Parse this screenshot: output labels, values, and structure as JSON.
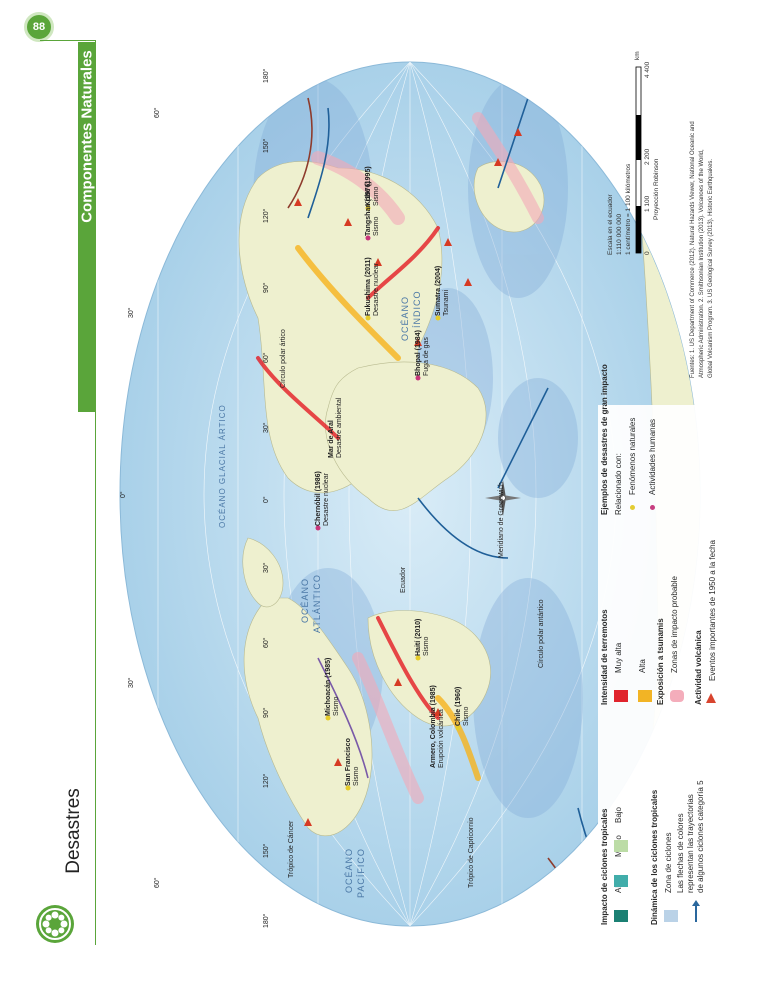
{
  "page": {
    "number": "88",
    "section": "Componentes Naturales",
    "title": "Desastres"
  },
  "map": {
    "oceans": [
      {
        "id": "glaciar",
        "line1": "OCÉANO GLACIAL ÁRTICO",
        "line2": ""
      },
      {
        "id": "atlantico",
        "line1": "OCÉANO",
        "line2": "ATLÁNTICO"
      },
      {
        "id": "pacifico",
        "line1": "OCÉANO",
        "line2": "PACÍFICO"
      },
      {
        "id": "indico",
        "line1": "OCÉANO",
        "line2": "ÍNDICO"
      }
    ],
    "lines": {
      "circulo_polar_artico": "Círculo polar ártico",
      "circulo_polar_antartico": "Círculo polar antártico",
      "tropico_cancer": "Trópico de Cáncer",
      "tropico_capricornio": "Trópico de Capricornio",
      "ecuador": "Ecuador",
      "greenwich": "Meridiano de Greenwich"
    },
    "lat_labels": [
      "60°",
      "30°",
      "0°",
      "30°",
      "60°"
    ],
    "lon_labels": [
      "180°",
      "150°",
      "120°",
      "90°",
      "60°",
      "30°",
      "0°",
      "30°",
      "60°",
      "90°",
      "120°",
      "150°",
      "180°"
    ],
    "events": [
      {
        "name": "Chernóbil (1986)",
        "desc": "Desastre nuclear"
      },
      {
        "name": "Fukushima (2011)",
        "desc": "Desastre nuclear"
      },
      {
        "name": "Bhopal (1984)",
        "desc": "Fuga de gas"
      },
      {
        "name": "Sumatra (2004)",
        "desc": "Tsunami"
      },
      {
        "name": "Haití (2010)",
        "desc": "Sismo"
      },
      {
        "name": "Chile (1960)",
        "desc": "Sismo"
      },
      {
        "name": "Armero, Colombia (1985)",
        "desc": "Erupción volcánica"
      },
      {
        "name": "San Francisco",
        "desc": "Sismo"
      },
      {
        "name": "Michoacán (1985)",
        "desc": "Sismo"
      },
      {
        "name": "Tangshan (1976)",
        "desc": "Sismo"
      },
      {
        "name": "Kobe (1995)",
        "desc": "Sismo"
      },
      {
        "name": "Mar de Aral",
        "desc": "Desastre ambiental"
      }
    ]
  },
  "legend": {
    "ciclones_title": "Impacto de ciclones tropicales",
    "ciclones": [
      {
        "label": "Alto",
        "color": "#0f7a6c"
      },
      {
        "label": "Medio",
        "color": "#37a9a6"
      },
      {
        "label": "Bajo",
        "color": "#b9dba2"
      }
    ],
    "dinamica_title": "Dinámica de los ciclones tropicales",
    "dinamica": [
      {
        "label": "Zona de ciclones",
        "color": "#b7d0e6"
      },
      {
        "label": "Las flechas de colores",
        "color": ""
      },
      {
        "label": "representan las trayectorias",
        "color": ""
      },
      {
        "label": "de algunos ciclones categoría 5",
        "color": "#1f5f98"
      }
    ],
    "terremotos_title": "Intensidad de terremotos",
    "terremotos": [
      {
        "label": "Muy alta",
        "color": "#e31b23"
      },
      {
        "label": "Alta",
        "color": "#f6b31b"
      }
    ],
    "tsunami_title": "Exposición a tsunamis",
    "tsunami_item": {
      "label": "Zonas de impacto probable",
      "color": "#f4a9b8"
    },
    "volcan_title": "Actividad volcánica",
    "volcan_item": {
      "label": "Eventos importantes de 1950 a la fecha",
      "color": "#d63a23"
    },
    "ejemplos_title": "Ejemplos de desastres de gran impacto",
    "ejemplos_sub": "Relacionado con:",
    "ejemplos": [
      {
        "label": "Fenómenos naturales",
        "color": "#e6cc2a"
      },
      {
        "label": "Actividades humanas",
        "color": "#c9367b"
      }
    ]
  },
  "scale": {
    "line1": "Escala en el ecuador",
    "line2": "1:110 000 000",
    "line3": "1 centímetro = 1 100 kilómetros",
    "ticks": [
      "0",
      "1 100",
      "2 200",
      "4 400"
    ],
    "unit": "km",
    "projection": "Proyección Robinson"
  },
  "sources": {
    "line1": "Fuentes: 1. US Department of Commerce (2012). Natural Hazards Viewer, National Oceanic and",
    "line2": "Atmospheric Administration. 2. Smithsonian Institution (2013). Volcanoes of the World,",
    "line3": "Global Volcanism Program. 3. US Geological Survey (2013). Historic Earthquakes."
  }
}
